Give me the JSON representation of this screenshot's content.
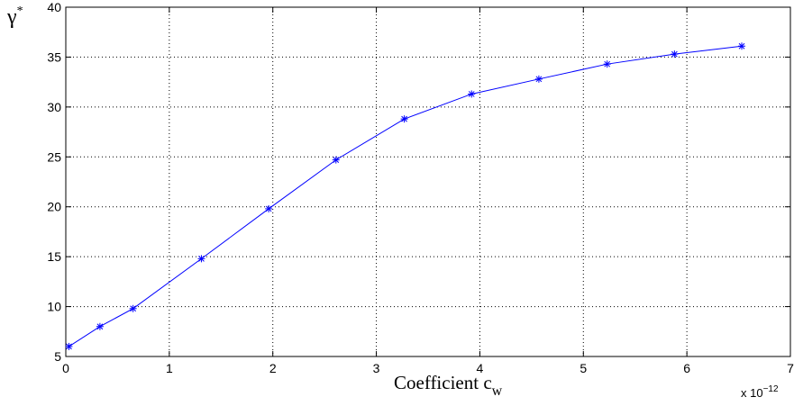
{
  "chart_data": {
    "type": "line",
    "title": "",
    "xlabel": {
      "main": "Coefficient c",
      "sub": "w"
    },
    "ylabel": {
      "main": "γ",
      "sup": "*"
    },
    "x_multiplier": {
      "base": "x 10",
      "exp": "−12"
    },
    "xlim": [
      0,
      7
    ],
    "ylim": [
      5,
      40
    ],
    "xticks": [
      0,
      1,
      2,
      3,
      4,
      5,
      6,
      7
    ],
    "yticks": [
      5,
      10,
      15,
      20,
      25,
      30,
      35,
      40
    ],
    "grid": true,
    "series": [
      {
        "color": "#0000ff",
        "marker": "asterisk",
        "x": [
          0.03,
          0.33,
          0.65,
          1.31,
          1.96,
          2.61,
          3.27,
          3.92,
          4.57,
          5.23,
          5.88,
          6.53
        ],
        "y": [
          6.0,
          8.0,
          9.8,
          14.8,
          19.8,
          24.7,
          28.8,
          31.3,
          32.8,
          34.3,
          35.3,
          36.1
        ]
      }
    ]
  }
}
